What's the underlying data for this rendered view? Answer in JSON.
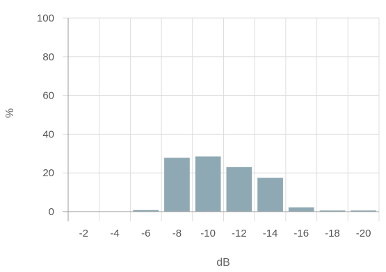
{
  "chart_data": {
    "type": "bar",
    "title": "",
    "xlabel": "dB",
    "ylabel": "%",
    "categories": [
      "-2",
      "-4",
      "-6",
      "-8",
      "-10",
      "-12",
      "-14",
      "-16",
      "-18",
      "-20"
    ],
    "values": [
      0,
      0,
      0.8,
      27.8,
      28.5,
      23.0,
      17.5,
      2.2,
      0.6,
      0.6
    ],
    "yticks": [
      "0",
      "20",
      "40",
      "60",
      "80",
      "100"
    ],
    "ylim": [
      0,
      100
    ],
    "grid": true,
    "bar_color": "#8ea9b3",
    "grid_color": "#dddddd",
    "axis_color": "#9a9a9a"
  }
}
